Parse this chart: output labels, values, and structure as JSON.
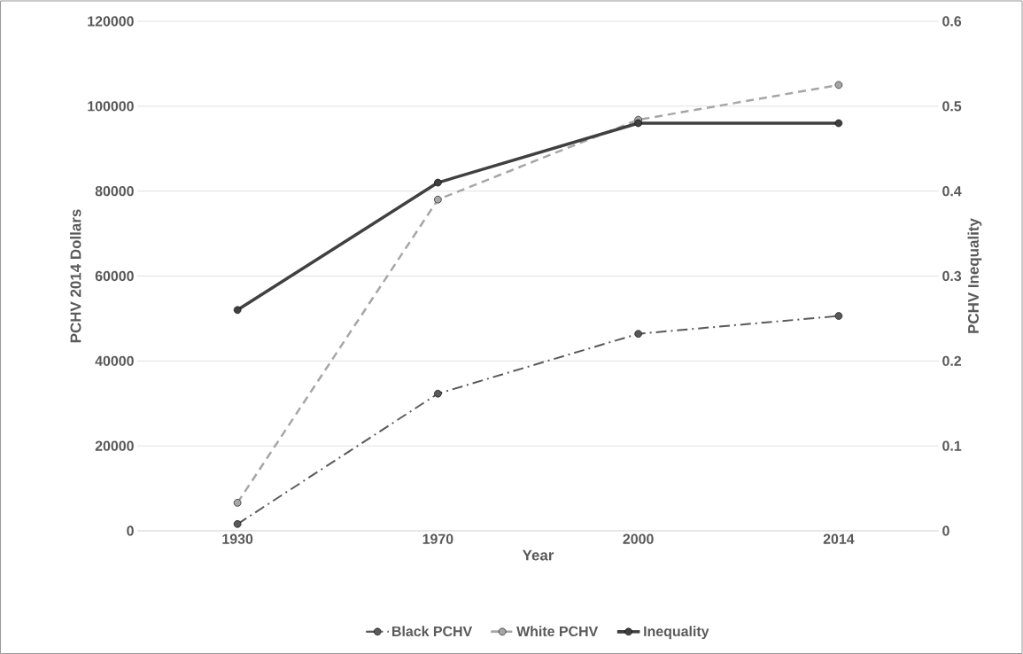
{
  "chart_data": {
    "type": "line",
    "xlabel": "Year",
    "ylabel": "PCHV 2014 Dollars",
    "y2label": "PCHV Inequality",
    "categories": [
      "1930",
      "1970",
      "2000",
      "2014"
    ],
    "series": [
      {
        "name": "Black PCHV",
        "color": "#595959",
        "values": [
          1600,
          32300,
          46400,
          50600
        ],
        "line_style": "dashdot"
      },
      {
        "name": "White PCHV",
        "color": "#a6a6a6",
        "values": [
          6600,
          78000,
          96800,
          105000
        ],
        "line_style": "dashed"
      },
      {
        "name": "Inequality",
        "color": "#404040",
        "values": [
          0.26,
          0.41,
          0.48,
          0.48
        ],
        "line_style": "solid",
        "axis": "y2"
      }
    ],
    "ylim": [
      0,
      120000
    ],
    "yticks": [
      0,
      20000,
      40000,
      60000,
      80000,
      100000,
      120000
    ],
    "y2lim": [
      0,
      0.6
    ],
    "y2ticks": [
      0,
      0.1,
      0.2,
      0.3,
      0.4,
      0.5,
      0.6
    ],
    "grid": "y",
    "legend": "bottom",
    "marker": "circle"
  }
}
